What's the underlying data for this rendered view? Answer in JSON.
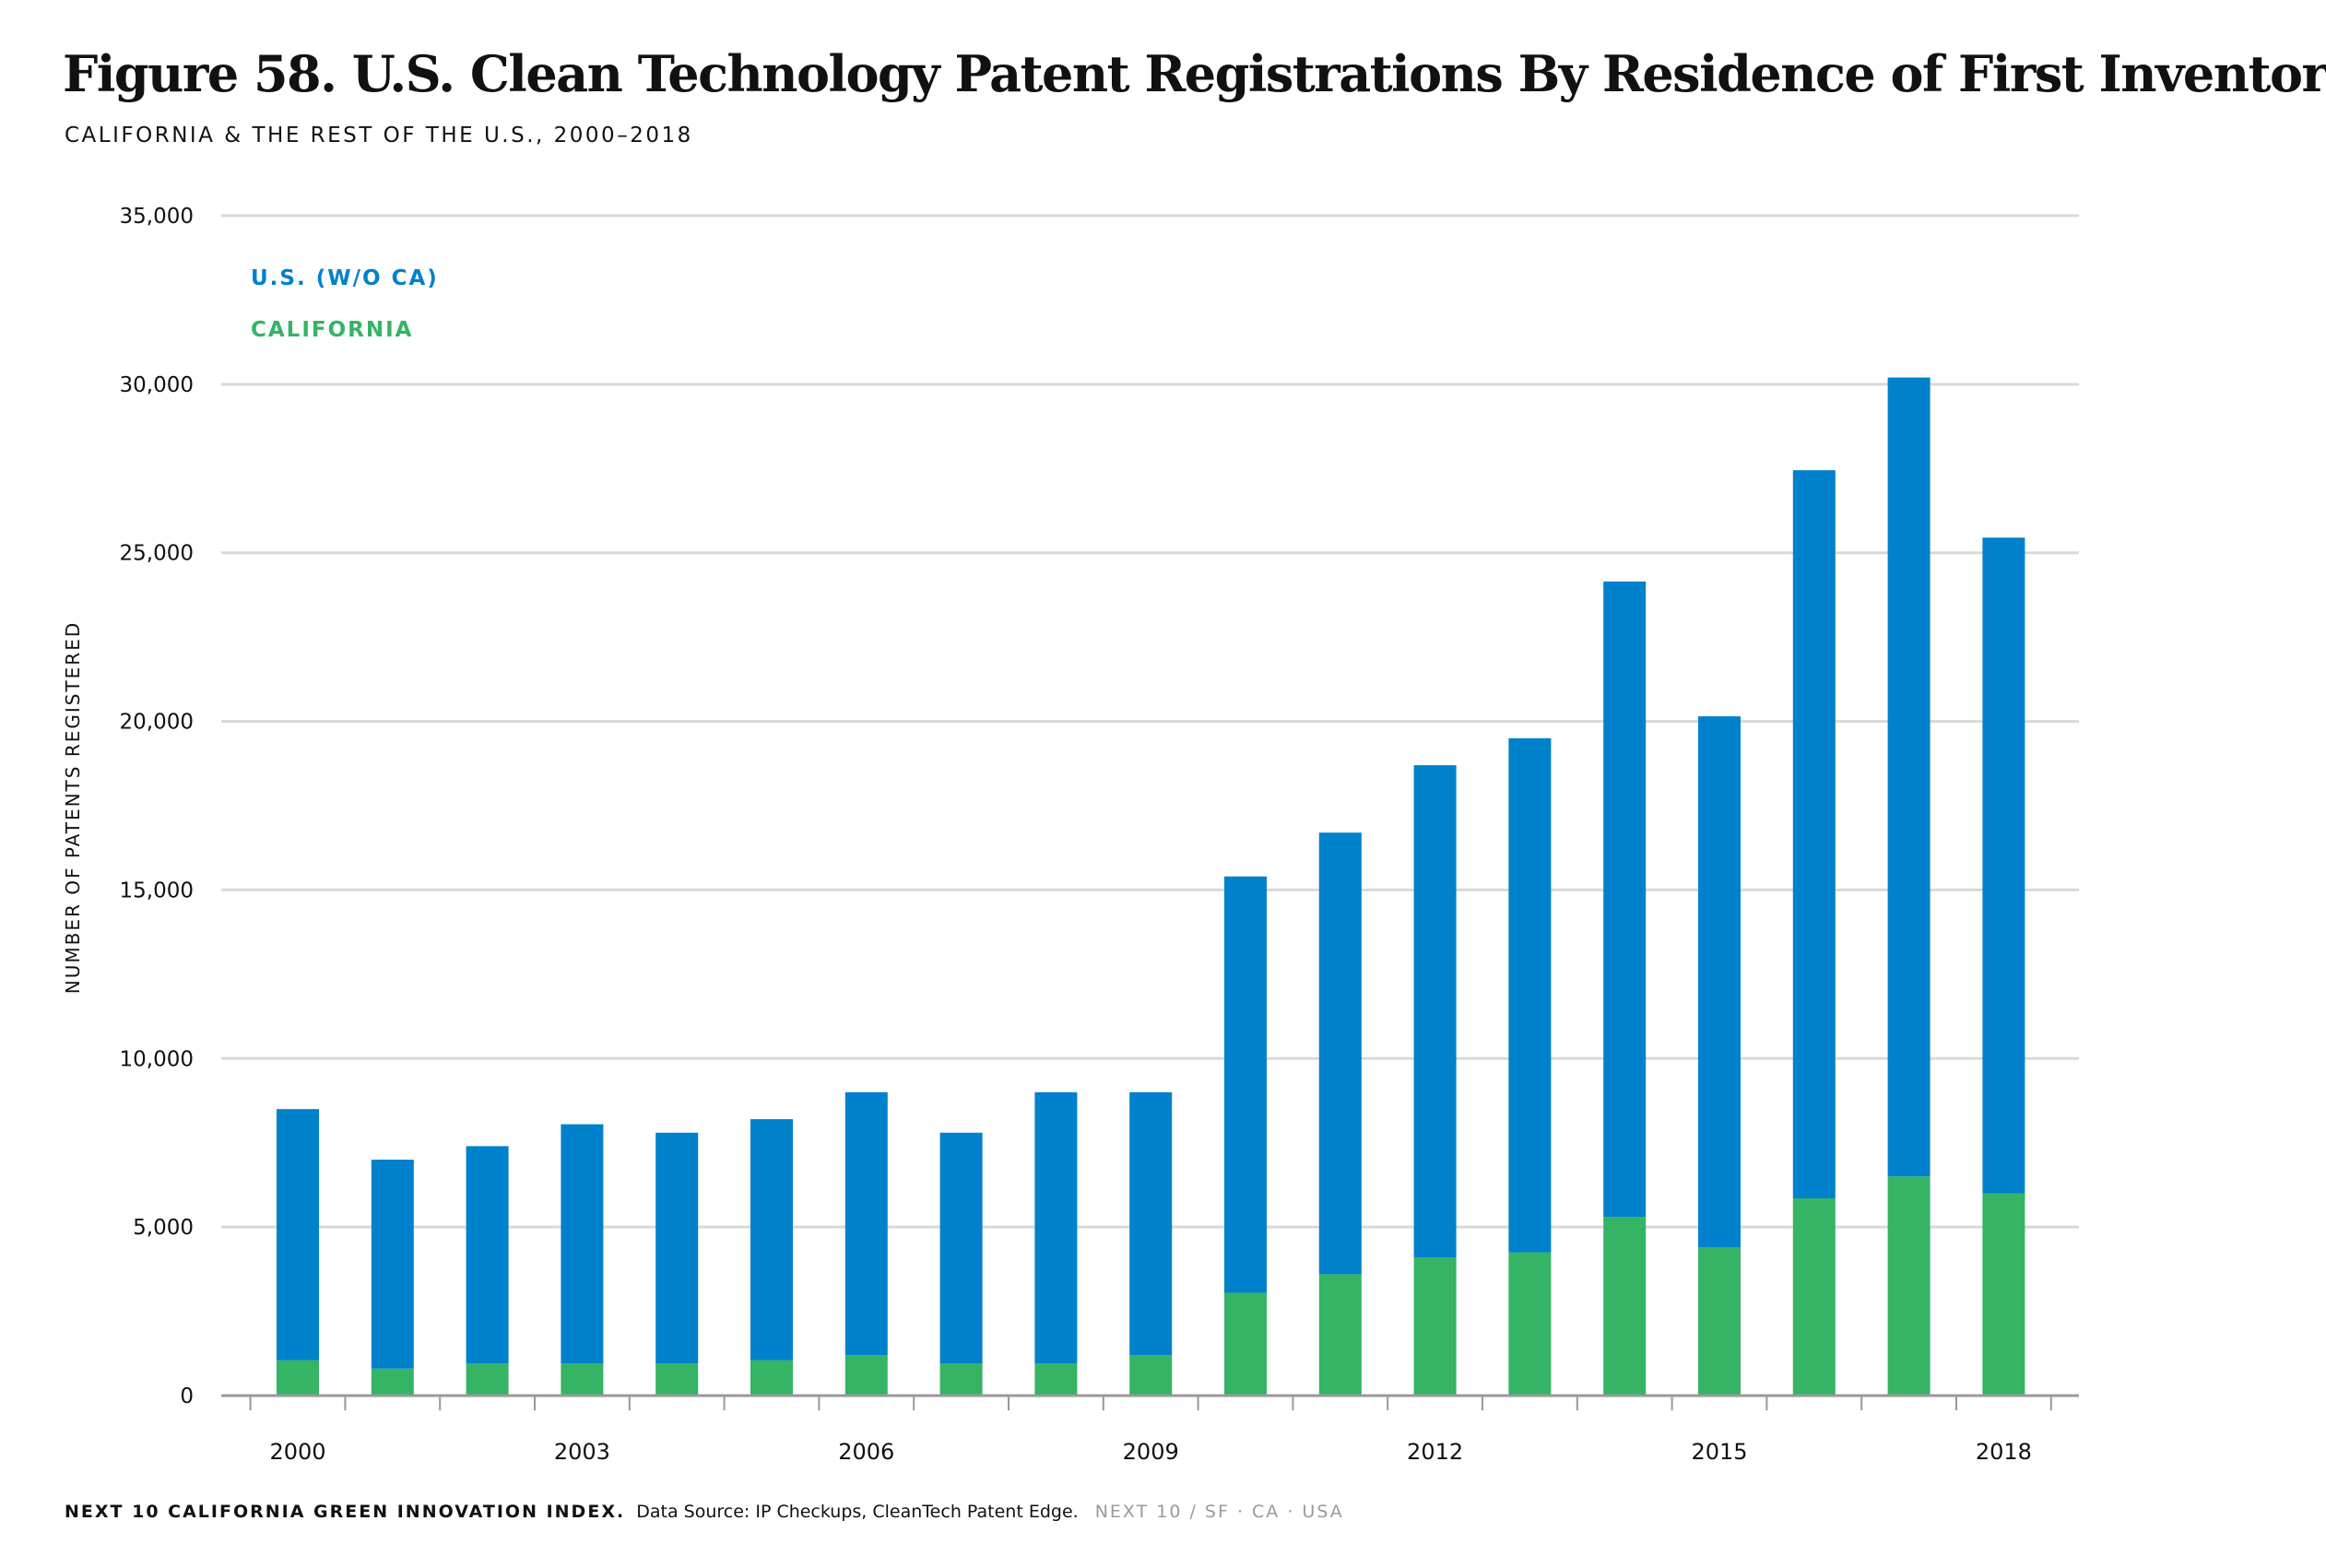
{
  "header": {
    "title": "Figure 58. U.S. Clean Technology Patent Registrations By Residence of First Inventor",
    "subtitle": "CALIFORNIA & THE REST OF THE U.S., 2000–2018"
  },
  "footer": {
    "brand": "NEXT 10 CALIFORNIA GREEN INNOVATION INDEX.",
    "source": "Data Source: IP Checkups, CleanTech Patent Edge.",
    "org": "NEXT 10 / SF · CA · USA"
  },
  "colors": {
    "us_wo_ca": "#0081CB",
    "california": "#34B464",
    "grid": "#d9d9d9",
    "axis": "#999999",
    "text": "#111111"
  },
  "chart_data": {
    "type": "bar",
    "stacked": true,
    "title": "Figure 58. U.S. Clean Technology Patent Registrations By Residence of First Inventor",
    "subtitle": "CALIFORNIA & THE REST OF THE U.S., 2000–2018",
    "xlabel": "",
    "ylabel": "NUMBER OF PATENTS REGISTERED",
    "ylim": [
      0,
      35000
    ],
    "yticks": [
      0,
      5000,
      10000,
      15000,
      20000,
      25000,
      30000,
      35000
    ],
    "ytick_labels": [
      "0",
      "5,000",
      "10,000",
      "15,000",
      "20,000",
      "25,000",
      "30,000",
      "35,000"
    ],
    "categories": [
      "2000",
      "2001",
      "2002",
      "2003",
      "2004",
      "2005",
      "2006",
      "2007",
      "2008",
      "2009",
      "2010",
      "2011",
      "2012",
      "2013",
      "2014",
      "2015",
      "2016",
      "2017",
      "2018"
    ],
    "xtick_labels": [
      "2000",
      "",
      "",
      "2003",
      "",
      "",
      "2006",
      "",
      "",
      "2009",
      "",
      "",
      "2012",
      "",
      "",
      "2015",
      "",
      "",
      "2018"
    ],
    "grid": true,
    "legend_position": "top-left",
    "series": [
      {
        "name": "CALIFORNIA",
        "color": "#34B464",
        "values": [
          1050,
          800,
          950,
          950,
          950,
          1050,
          1200,
          950,
          950,
          1200,
          3050,
          3600,
          4100,
          4250,
          5300,
          4400,
          5850,
          6500,
          6000
        ]
      },
      {
        "name": "U.S. (W/O CA)",
        "color": "#0081CB",
        "values": [
          7450,
          6200,
          6450,
          7100,
          6850,
          7150,
          7800,
          6850,
          8050,
          7800,
          12350,
          13100,
          14600,
          15250,
          18850,
          15750,
          21600,
          23700,
          19450
        ]
      }
    ],
    "legend": [
      {
        "name": "U.S. (W/O CA)",
        "color": "#0081CB"
      },
      {
        "name": "CALIFORNIA",
        "color": "#34B464"
      }
    ]
  }
}
